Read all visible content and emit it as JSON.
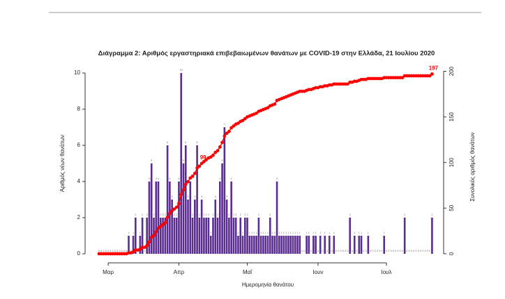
{
  "chart_data": {
    "type": "bar",
    "title": "Διάγραμμα 2: Αριθμός εργαστηριακά επιβεβαιωμένων θανάτων με COVID-19 στην Ελλάδα, 21 Ιουλίου 2020",
    "xlabel": "Ημερομηνία θανάτου",
    "ylabel": "Αριθμός νέων θανάτων",
    "y2label": "Συνολικός αριθμός θανάτων",
    "categories": [
      null,
      null,
      null,
      null,
      "Μαρ",
      null,
      null,
      null,
      null,
      null,
      null,
      null,
      null,
      null,
      null,
      null,
      null,
      null,
      null,
      null,
      null,
      null,
      null,
      null,
      null,
      null,
      null,
      null,
      null,
      null,
      null,
      null,
      null,
      null,
      null,
      "Απρ",
      null,
      null,
      null,
      null,
      null,
      null,
      null,
      null,
      null,
      null,
      null,
      null,
      null,
      null,
      null,
      null,
      null,
      null,
      null,
      null,
      null,
      null,
      null,
      null,
      null,
      null,
      null,
      null,
      null,
      "Μαΐ",
      null,
      null,
      null,
      null,
      null,
      null,
      null,
      null,
      null,
      null,
      null,
      null,
      null,
      null,
      null,
      null,
      null,
      null,
      null,
      null,
      null,
      null,
      null,
      null,
      null,
      null,
      null,
      null,
      null,
      null,
      "Ιουν",
      null,
      null,
      null,
      null,
      null,
      null,
      null,
      null,
      null,
      null,
      null,
      null,
      null,
      null,
      null,
      null,
      null,
      null,
      null,
      null,
      null,
      null,
      null,
      null,
      null,
      null,
      null,
      null,
      null,
      "Ιουλ",
      null,
      null,
      null,
      null,
      null,
      null,
      null,
      null,
      null,
      null,
      null,
      null,
      null,
      null,
      null,
      null,
      null,
      null,
      null,
      null
    ],
    "series": [
      {
        "type": "bar",
        "color": "#5b2d90",
        "values": [
          0,
          0,
          0,
          0,
          0,
          0,
          0,
          0,
          0,
          0,
          0,
          0,
          0,
          1,
          0,
          1,
          2,
          0,
          1,
          2,
          0,
          2,
          4,
          5,
          2,
          4,
          4,
          2,
          2,
          2,
          6,
          4,
          3,
          2,
          2,
          4,
          10,
          5,
          6,
          3,
          4,
          2,
          3,
          6,
          2,
          3,
          2,
          2,
          2,
          1,
          2,
          3,
          2,
          4,
          5,
          7,
          3,
          2,
          4,
          2,
          2,
          1,
          2,
          1,
          2,
          2,
          1,
          1,
          1,
          1,
          2,
          1,
          1,
          1,
          1,
          2,
          1,
          1,
          4,
          1,
          1,
          1,
          1,
          1,
          1,
          1,
          1,
          1,
          1,
          0,
          0,
          1,
          1,
          0,
          1,
          1,
          0,
          1,
          0,
          1,
          0,
          1,
          0,
          1,
          0,
          0,
          0,
          0,
          0,
          0,
          2,
          0,
          1,
          0,
          1,
          1,
          0,
          0,
          1,
          0,
          0,
          0,
          0,
          0,
          0,
          1,
          0,
          0,
          0,
          0,
          0,
          0,
          0,
          0,
          2,
          0,
          0,
          0,
          0,
          0,
          0,
          0,
          0,
          0,
          0,
          0,
          2
        ]
      },
      {
        "type": "line",
        "axis": "y2",
        "color": "#ff0000",
        "label_points": [
          45,
          146
        ],
        "values": [
          0,
          0,
          0,
          0,
          0,
          0,
          0,
          0,
          0,
          0,
          0,
          0,
          0,
          1,
          1,
          2,
          4,
          4,
          5,
          7,
          7,
          9,
          13,
          18,
          20,
          24,
          28,
          30,
          32,
          34,
          40,
          44,
          47,
          49,
          51,
          55,
          65,
          70,
          76,
          79,
          83,
          85,
          88,
          94,
          96,
          99,
          101,
          103,
          105,
          106,
          108,
          111,
          113,
          117,
          122,
          129,
          132,
          134,
          138,
          140,
          142,
          143,
          145,
          146,
          148,
          150,
          151,
          152,
          153,
          154,
          156,
          157,
          158,
          159,
          160,
          162,
          163,
          164,
          168,
          169,
          170,
          171,
          172,
          173,
          174,
          175,
          176,
          177,
          178,
          178,
          178,
          179,
          180,
          180,
          181,
          182,
          182,
          183,
          183,
          184,
          184,
          185,
          185,
          186,
          186,
          186,
          186,
          186,
          186,
          186,
          188,
          188,
          189,
          189,
          190,
          191,
          191,
          191,
          192,
          192,
          192,
          192,
          192,
          192,
          192,
          193,
          193,
          193,
          193,
          193,
          193,
          193,
          193,
          193,
          195,
          195,
          195,
          195,
          195,
          195,
          195,
          195,
          195,
          195,
          195,
          195,
          197
        ]
      }
    ],
    "ylim": [
      -0.4,
      10.4
    ],
    "yticks": [
      0,
      2,
      4,
      6,
      8,
      10
    ],
    "y2lim": [
      -8,
      206
    ],
    "y2ticks": [
      0,
      50,
      100,
      150,
      200
    ]
  }
}
